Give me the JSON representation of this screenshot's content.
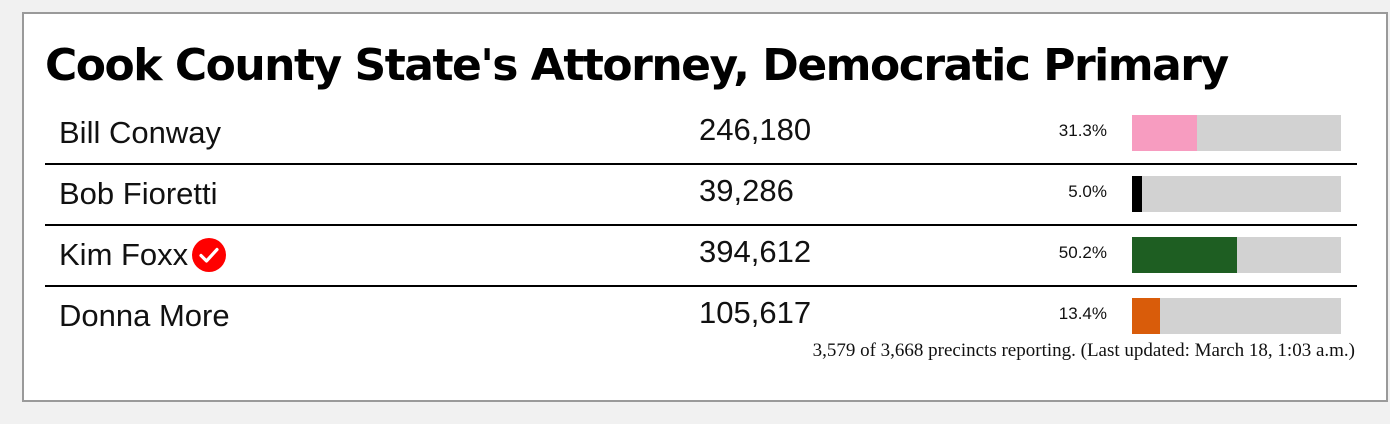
{
  "race": {
    "title": "Cook County State's Attorney, Democratic Primary",
    "footer": "3,579 of 3,668 precincts reporting. (Last updated: March 18, 1:03 a.m.)"
  },
  "candidates": [
    {
      "name": "Bill Conway",
      "votes": "246,180",
      "percent_label": "31.3%",
      "percent": 31.3,
      "color": "#f79cc0",
      "winner": false
    },
    {
      "name": "Bob Fioretti",
      "votes": "39,286",
      "percent_label": "5.0%",
      "percent": 5.0,
      "color": "#000000",
      "winner": false
    },
    {
      "name": "Kim Foxx",
      "votes": "394,612",
      "percent_label": "50.2%",
      "percent": 50.2,
      "color": "#1e5e22",
      "winner": true,
      "winner_icon": "check-circle-icon",
      "winner_icon_color": "#ff0000"
    },
    {
      "name": "Donna More",
      "votes": "105,617",
      "percent_label": "13.4%",
      "percent": 13.4,
      "color": "#d95c0a",
      "winner": false
    }
  ],
  "bar_track_color": "#d2d2d2"
}
